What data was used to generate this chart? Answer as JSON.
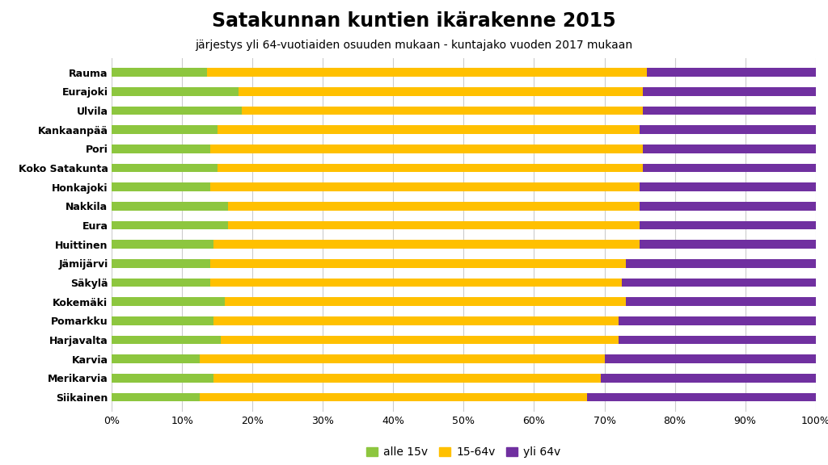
{
  "title": "Satakunnan kuntien ikärakenne 2015",
  "subtitle": "järjestys yli 64-vuotiaiden osuuden mukaan - kuntajako vuoden 2017 mukaan",
  "categories": [
    "Rauma",
    "Eurajoki",
    "Ulvila",
    "Kankaanpää",
    "Pori",
    "Koko Satakunta",
    "Honkajoki",
    "Nakkila",
    "Eura",
    "Huittinen",
    "Jämijärvi",
    "Säkylä",
    "Kokemäki",
    "Pomarkku",
    "Harjavalta",
    "Karvia",
    "Merikarvia",
    "Siikainen"
  ],
  "alle15": [
    13.5,
    18.0,
    18.5,
    15.0,
    14.0,
    15.0,
    14.0,
    16.5,
    16.5,
    14.5,
    14.0,
    14.0,
    16.0,
    14.5,
    15.5,
    12.5,
    14.5,
    12.5
  ],
  "mid": [
    62.5,
    57.5,
    57.0,
    60.0,
    61.5,
    60.5,
    61.0,
    58.5,
    58.5,
    60.5,
    59.0,
    58.5,
    57.0,
    57.5,
    56.5,
    57.5,
    55.0,
    55.0
  ],
  "over64": [
    24.0,
    24.5,
    24.5,
    25.0,
    24.5,
    24.5,
    25.0,
    25.0,
    25.0,
    25.0,
    27.0,
    27.5,
    27.0,
    28.0,
    28.0,
    30.0,
    30.5,
    32.5
  ],
  "color_alle15": "#8dc63f",
  "color_mid": "#ffc000",
  "color_over64": "#7030a0",
  "legend_labels": [
    "alle 15v",
    "15-64v",
    "yli 64v"
  ],
  "xlabel_ticks": [
    0,
    10,
    20,
    30,
    40,
    50,
    60,
    70,
    80,
    90,
    100
  ],
  "background_color": "#ffffff",
  "title_fontsize": 17,
  "subtitle_fontsize": 10,
  "tick_fontsize": 9,
  "label_fontsize": 9,
  "bar_height": 0.45
}
